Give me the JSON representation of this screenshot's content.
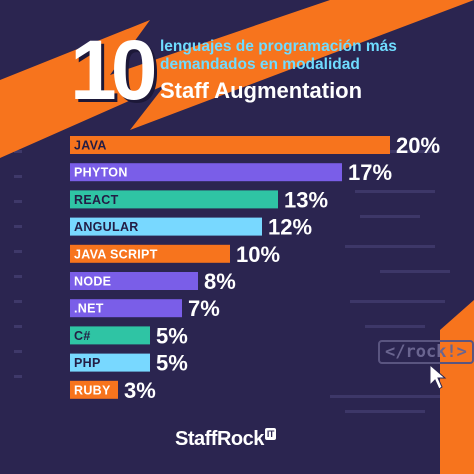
{
  "header": {
    "big_number": "10",
    "subtitle_line1": "lenguajes de programación más",
    "subtitle_line2": "demandados en modalidad",
    "subtitle_strong": "Staff Augmentation"
  },
  "colors": {
    "background": "#2b2550",
    "accent_orange": "#f7741d",
    "purple": "#7a5ee8",
    "teal": "#2fc4a4",
    "light_blue": "#78d8ff",
    "text_dark": "#231d45"
  },
  "chart_data": {
    "type": "bar",
    "orientation": "horizontal",
    "title": "10 lenguajes de programación más demandados en modalidad Staff Augmentation",
    "xlabel": "",
    "ylabel": "",
    "xlim": [
      0,
      20
    ],
    "grid": false,
    "categories": [
      "JAVA",
      "PHYTON",
      "REACT",
      "ANGULAR",
      "JAVA SCRIPT",
      "NODE",
      ".NET",
      "C#",
      "PHP",
      "RUBY"
    ],
    "values": [
      20,
      17,
      13,
      12,
      10,
      8,
      7,
      5,
      5,
      3
    ],
    "value_labels": [
      "20%",
      "17%",
      "13%",
      "12%",
      "10%",
      "8%",
      "7%",
      "5%",
      "5%",
      "3%"
    ],
    "bar_colors": [
      "#f7741d",
      "#7a5ee8",
      "#2fc4a4",
      "#78d8ff",
      "#f7741d",
      "#7a5ee8",
      "#7a5ee8",
      "#2fc4a4",
      "#78d8ff",
      "#f7741d"
    ],
    "label_colors": [
      "#231d45",
      "#ffffff",
      "#231d45",
      "#231d45",
      "#ffffff",
      "#ffffff",
      "#ffffff",
      "#231d45",
      "#231d45",
      "#ffffff"
    ]
  },
  "decor": {
    "rock_tag": "</rock!>",
    "cursor_icon": "cursor-arrow-icon"
  },
  "logo": {
    "text": "StaffRock",
    "badge": "IT"
  }
}
